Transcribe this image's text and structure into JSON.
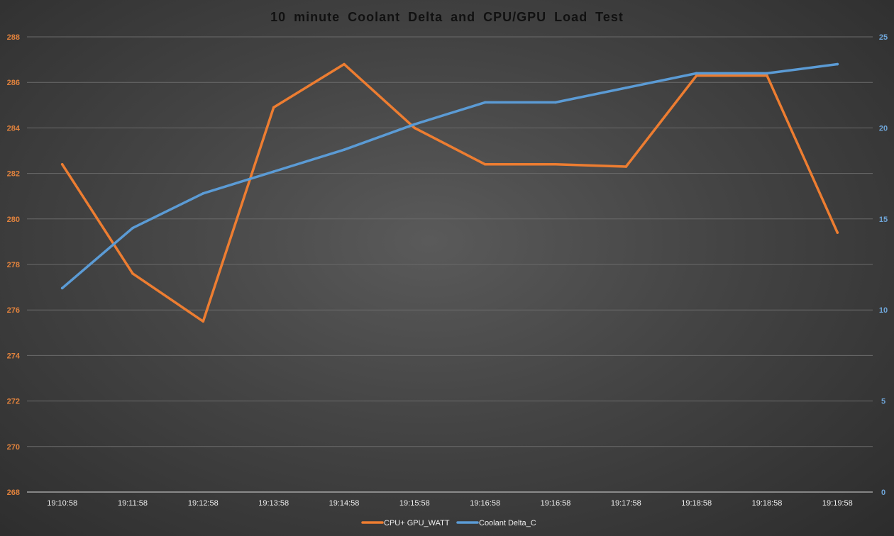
{
  "chart_data": {
    "type": "line",
    "title": "10 minute  Coolant  Delta  and  CPU/GPU  Load  Test",
    "categories": [
      "19:10:58",
      "19:11:58",
      "19:12:58",
      "19:13:58",
      "19:14:58",
      "19:15:58",
      "19:16:58",
      "19:16:58",
      "19:17:58",
      "19:18:58",
      "19:18:58",
      "19:19:58"
    ],
    "y_left": {
      "ylim": [
        268,
        288
      ],
      "ticks": [
        "268",
        "270",
        "272",
        "274",
        "276",
        "278",
        "280",
        "282",
        "284",
        "286",
        "288"
      ]
    },
    "y_right": {
      "ylim": [
        0,
        25
      ],
      "ticks": [
        "0",
        "5",
        "10",
        "15",
        "20",
        "25"
      ]
    },
    "grid": true,
    "legend_position": "bottom",
    "series": [
      {
        "name": "CPU+ GPU_WATT",
        "axis": "left",
        "color": "#ed7d31",
        "values": [
          282.4,
          277.6,
          275.5,
          284.9,
          286.8,
          284.0,
          282.4,
          282.4,
          282.3,
          286.3,
          286.3,
          279.4
        ]
      },
      {
        "name": "Coolant Delta_C",
        "axis": "right",
        "color": "#5b9bd5",
        "values": [
          11.2,
          14.5,
          16.4,
          17.6,
          18.8,
          20.2,
          21.4,
          21.4,
          22.2,
          23.0,
          23.0,
          23.5
        ]
      }
    ]
  }
}
